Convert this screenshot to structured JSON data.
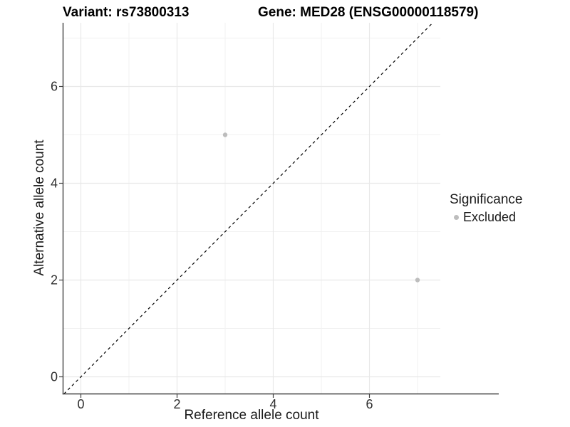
{
  "page": {
    "background": "#ffffff"
  },
  "chart_data": {
    "type": "scatter",
    "title_left": "Variant: rs73800313",
    "title_right": "Gene: MED28 (ENSG00000118579)",
    "xlabel": "Reference allele count",
    "ylabel": "Alternative allele count",
    "x_ticks": [
      0,
      2,
      4,
      6
    ],
    "y_ticks": [
      0,
      2,
      4,
      6
    ],
    "x_minor_gridlines": [
      1,
      3,
      5,
      7
    ],
    "y_minor_gridlines": [
      1,
      3,
      5,
      7
    ],
    "xlim": [
      -0.37,
      7.48
    ],
    "ylim": [
      -0.35,
      7.32
    ],
    "series": [
      {
        "name": "Excluded",
        "color": "#bdbdbd",
        "points": [
          [
            3,
            5
          ],
          [
            7,
            2
          ]
        ]
      }
    ],
    "reference_line": {
      "type": "identity",
      "equation": "y = x",
      "style": "dashed",
      "color": "#000000"
    },
    "legend": {
      "title": "Significance",
      "position": "right",
      "items": [
        {
          "label": "Excluded",
          "color": "#bdbdbd"
        }
      ]
    },
    "grid": {
      "on": true,
      "major_color": "#e8e8e8",
      "minor_color": "#f1f1f1"
    },
    "axis_color": "#404040",
    "tick_label_color": "#303030"
  }
}
